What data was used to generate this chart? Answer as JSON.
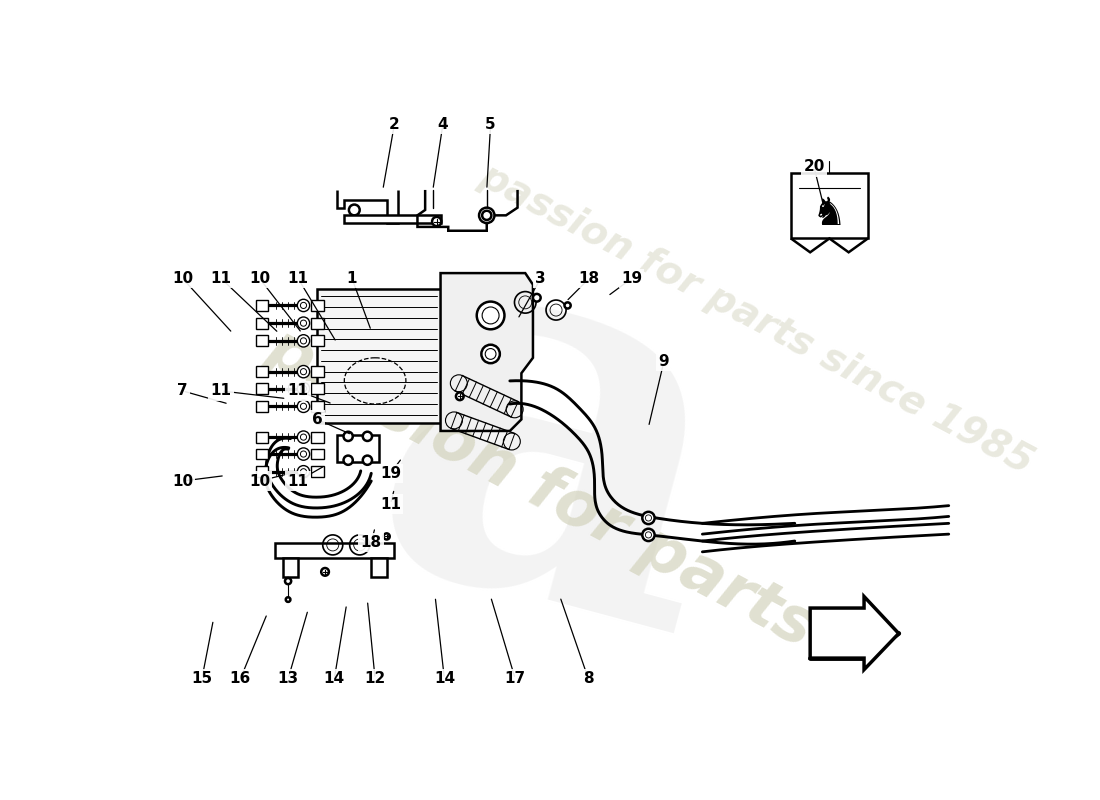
{
  "bg_color": "#ffffff",
  "line_color": "#000000",
  "lw_main": 1.8,
  "lw_thin": 1.0,
  "lw_thick": 2.5,
  "label_fontsize": 11,
  "watermark1_text": "passion for parts",
  "watermark1_color": "#d8d8c0",
  "watermark2_text": "a",
  "watermark2_color": "#e8e8e8",
  "wm_logo_color": "#d0d0d0",
  "indicators": [
    [
      "2",
      330,
      37,
      315,
      122
    ],
    [
      "4",
      393,
      37,
      380,
      122
    ],
    [
      "5",
      455,
      37,
      450,
      122
    ],
    [
      "1",
      275,
      237,
      300,
      305
    ],
    [
      "3",
      520,
      237,
      490,
      290
    ],
    [
      "18",
      583,
      237,
      553,
      267
    ],
    [
      "19",
      638,
      237,
      607,
      260
    ],
    [
      "9",
      680,
      345,
      660,
      430
    ],
    [
      "10",
      55,
      237,
      120,
      308
    ],
    [
      "11",
      105,
      237,
      180,
      308
    ],
    [
      "10",
      155,
      237,
      210,
      308
    ],
    [
      "11",
      205,
      237,
      255,
      320
    ],
    [
      "7",
      55,
      383,
      115,
      400
    ],
    [
      "6",
      230,
      420,
      275,
      440
    ],
    [
      "11",
      105,
      383,
      190,
      393
    ],
    [
      "11",
      205,
      383,
      250,
      400
    ],
    [
      "10",
      55,
      500,
      110,
      493
    ],
    [
      "11",
      205,
      500,
      240,
      480
    ],
    [
      "10",
      155,
      500,
      195,
      490
    ],
    [
      "19",
      325,
      490,
      340,
      470
    ],
    [
      "11",
      325,
      530,
      330,
      510
    ],
    [
      "18",
      300,
      580,
      305,
      560
    ],
    [
      "15",
      80,
      757,
      95,
      680
    ],
    [
      "16",
      130,
      757,
      165,
      672
    ],
    [
      "13",
      192,
      757,
      218,
      667
    ],
    [
      "14",
      252,
      757,
      268,
      660
    ],
    [
      "12",
      305,
      757,
      295,
      655
    ],
    [
      "14",
      395,
      757,
      383,
      650
    ],
    [
      "17",
      487,
      757,
      455,
      650
    ],
    [
      "8",
      582,
      757,
      545,
      650
    ],
    [
      "20",
      875,
      92,
      888,
      145
    ]
  ]
}
